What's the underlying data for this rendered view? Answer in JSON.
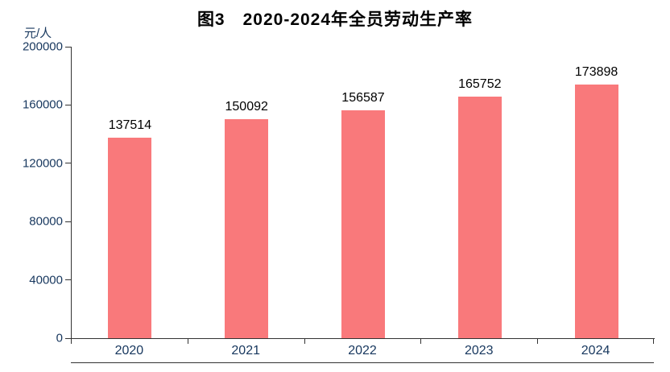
{
  "title": "图3　2020-2024年全员劳动生产率",
  "unit_label": "元/人",
  "colors": {
    "bar": "#f9797b",
    "axis_line": "#333333",
    "tick_label": "#17375e",
    "value_label": "#000000",
    "title": "#000000",
    "background": "#ffffff"
  },
  "chart_data": {
    "type": "bar",
    "title": "图3　2020-2024年全员劳动生产率",
    "categories": [
      "2020",
      "2021",
      "2022",
      "2023",
      "2024"
    ],
    "values": [
      137514,
      150092,
      156587,
      165752,
      173898
    ],
    "xlabel": "",
    "ylabel": "元/人",
    "ylim": [
      0,
      200000
    ],
    "yticks": [
      0,
      40000,
      80000,
      120000,
      160000,
      200000
    ],
    "grid": false,
    "legend": false,
    "bar_color": "#f9797b"
  }
}
